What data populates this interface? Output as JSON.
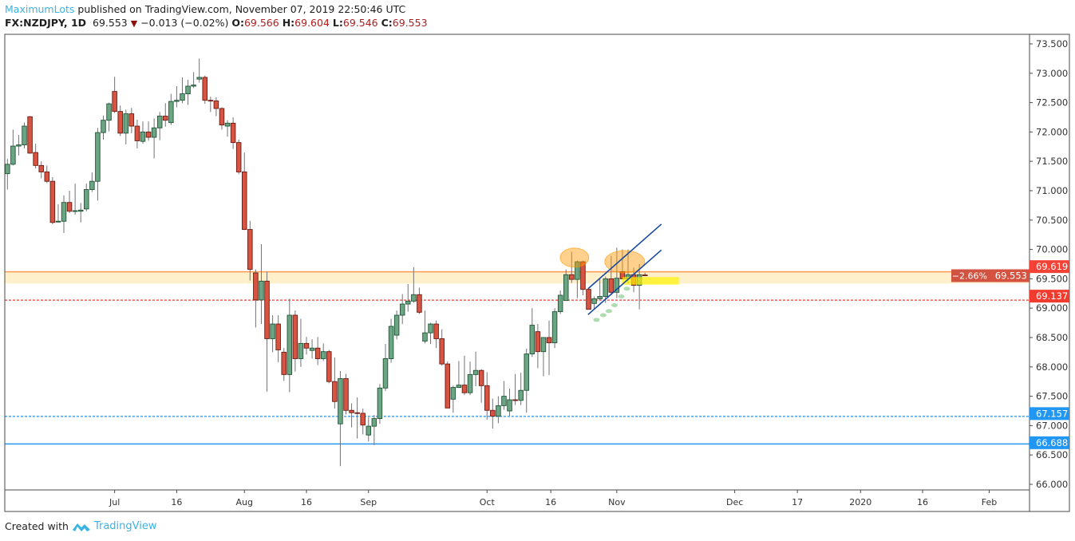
{
  "header": {
    "author": "MaximumLots",
    "published": "published on TradingView.com, November 07, 2019 22:50:46 UTC",
    "symbol": "FX:NZDJPY, 1D",
    "last": "69.553",
    "change": "−0.013 (−0.02%)",
    "o_label": "O:",
    "o": "69.566",
    "h_label": "H:",
    "h": "69.604",
    "l_label": "L:",
    "l": "69.546",
    "c_label": "C:",
    "c": "69.553"
  },
  "footer": {
    "created_with": "Created with",
    "brand": "TradingView"
  },
  "colors": {
    "up": "#6ba583",
    "up_border": "#225437",
    "down": "#d75442",
    "down_border": "#6b1a12",
    "wick": "#737375",
    "orange": "#ff9850",
    "red_line": "#f23b2f",
    "blue": "#2196f3"
  },
  "chart_data": {
    "type": "candlestick",
    "title": "FX:NZDJPY, 1D",
    "ylim": [
      66.0,
      73.5
    ],
    "y_ticks": [
      "73.500",
      "73.000",
      "72.500",
      "72.000",
      "71.500",
      "71.000",
      "70.500",
      "70.000",
      "69.500",
      "69.000",
      "68.500",
      "68.000",
      "67.500",
      "67.000",
      "66.500",
      "66.000"
    ],
    "y_tick_values": [
      73.5,
      73.0,
      72.5,
      72.0,
      71.5,
      71.0,
      70.5,
      70.0,
      69.5,
      69.0,
      68.5,
      68.0,
      67.5,
      67.0,
      66.5,
      66.0
    ],
    "x_ticks": [
      {
        "label": "Jul",
        "bar": 19
      },
      {
        "label": "16",
        "bar": 30
      },
      {
        "label": "Aug",
        "bar": 42
      },
      {
        "label": "16",
        "bar": 53
      },
      {
        "label": "Sep",
        "bar": 64
      },
      {
        "label": "Oct",
        "bar": 85
      },
      {
        "label": "16",
        "bar": 96.3
      },
      {
        "label": "Nov",
        "bar": 108
      },
      {
        "label": "Dec",
        "bar": 128.9
      },
      {
        "label": "17",
        "bar": 140
      },
      {
        "label": "2020",
        "bar": 151.2
      },
      {
        "label": "16",
        "bar": 162.2
      },
      {
        "label": "Feb",
        "bar": 174
      }
    ],
    "ohlc": [
      [
        71.29,
        71.54,
        71.02,
        71.45
      ],
      [
        71.45,
        72.04,
        71.43,
        71.76
      ],
      [
        71.76,
        71.95,
        71.6,
        71.78
      ],
      [
        71.78,
        72.16,
        71.72,
        72.1
      ],
      [
        72.26,
        72.27,
        71.63,
        71.64
      ],
      [
        71.65,
        71.8,
        71.38,
        71.43
      ],
      [
        71.43,
        71.5,
        71.21,
        71.32
      ],
      [
        71.32,
        71.43,
        71.13,
        71.16
      ],
      [
        71.16,
        71.23,
        70.43,
        70.46
      ],
      [
        70.47,
        70.77,
        70.46,
        70.48
      ],
      [
        70.48,
        70.92,
        70.28,
        70.8
      ],
      [
        70.8,
        71.0,
        70.62,
        70.65
      ],
      [
        70.65,
        71.12,
        70.59,
        70.66
      ],
      [
        70.65,
        70.79,
        70.46,
        70.67
      ],
      [
        70.69,
        71.12,
        70.65,
        71.02
      ],
      [
        71.02,
        71.31,
        70.98,
        71.16
      ],
      [
        71.16,
        72.07,
        70.83,
        71.99
      ],
      [
        71.99,
        72.28,
        71.87,
        72.2
      ],
      [
        72.2,
        72.5,
        72.01,
        72.48
      ],
      [
        72.69,
        72.94,
        72.32,
        72.35
      ],
      [
        72.35,
        72.45,
        71.93,
        71.98
      ],
      [
        71.98,
        72.38,
        71.79,
        72.31
      ],
      [
        72.31,
        72.41,
        71.98,
        72.1
      ],
      [
        72.1,
        72.21,
        71.72,
        71.85
      ],
      [
        71.84,
        72.18,
        71.8,
        72.0
      ],
      [
        72.0,
        72.18,
        71.85,
        71.91
      ],
      [
        71.91,
        72.23,
        71.55,
        72.07
      ],
      [
        72.07,
        72.34,
        71.86,
        72.27
      ],
      [
        72.27,
        72.49,
        72.09,
        72.2
      ],
      [
        72.16,
        72.65,
        72.12,
        72.52
      ],
      [
        72.52,
        72.78,
        72.42,
        72.54
      ],
      [
        72.54,
        72.93,
        72.49,
        72.65
      ],
      [
        72.65,
        72.89,
        72.46,
        72.78
      ],
      [
        72.78,
        73.02,
        72.75,
        72.8
      ],
      [
        72.9,
        73.25,
        72.84,
        72.93
      ],
      [
        72.93,
        72.96,
        72.48,
        72.54
      ],
      [
        72.54,
        72.6,
        72.34,
        72.53
      ],
      [
        72.53,
        72.59,
        72.27,
        72.4
      ],
      [
        72.4,
        72.42,
        72.04,
        72.12
      ],
      [
        72.1,
        72.2,
        71.92,
        72.15
      ],
      [
        72.15,
        72.25,
        71.71,
        71.82
      ],
      [
        71.82,
        71.87,
        71.28,
        71.32
      ],
      [
        71.32,
        71.65,
        70.33,
        70.34
      ],
      [
        70.34,
        70.49,
        69.47,
        69.66
      ],
      [
        69.6,
        69.66,
        68.67,
        69.14
      ],
      [
        69.14,
        70.09,
        68.73,
        69.46
      ],
      [
        69.46,
        69.62,
        67.58,
        68.48
      ],
      [
        68.48,
        68.88,
        68.25,
        68.73
      ],
      [
        68.73,
        68.88,
        68.08,
        68.29
      ],
      [
        68.25,
        68.32,
        67.76,
        67.87
      ],
      [
        67.87,
        69.16,
        67.57,
        68.88
      ],
      [
        68.88,
        68.96,
        67.92,
        68.14
      ],
      [
        68.14,
        68.82,
        68.0,
        68.4
      ],
      [
        68.4,
        68.51,
        68.21,
        68.32
      ],
      [
        68.28,
        68.47,
        68.14,
        68.32
      ],
      [
        68.32,
        68.51,
        68.03,
        68.14
      ],
      [
        68.14,
        68.4,
        68.1,
        68.26
      ],
      [
        68.26,
        68.29,
        67.72,
        67.75
      ],
      [
        67.75,
        68.16,
        67.29,
        67.41
      ],
      [
        67.03,
        67.93,
        66.31,
        67.8
      ],
      [
        67.8,
        67.88,
        67.19,
        67.26
      ],
      [
        67.26,
        67.38,
        66.97,
        67.22
      ],
      [
        67.22,
        67.48,
        66.78,
        67.21
      ],
      [
        67.21,
        67.29,
        66.85,
        67.01
      ],
      [
        66.84,
        67.14,
        66.73,
        66.99
      ],
      [
        66.99,
        67.18,
        66.67,
        67.12
      ],
      [
        67.12,
        67.71,
        67.03,
        67.64
      ],
      [
        67.64,
        68.39,
        67.59,
        68.14
      ],
      [
        68.14,
        68.82,
        68.07,
        68.69
      ],
      [
        68.54,
        68.96,
        68.47,
        68.88
      ],
      [
        68.88,
        69.24,
        68.73,
        69.07
      ],
      [
        69.07,
        69.41,
        68.94,
        69.12
      ],
      [
        69.12,
        69.7,
        69.09,
        69.23
      ],
      [
        69.23,
        69.35,
        68.9,
        68.93
      ],
      [
        68.44,
        68.96,
        68.4,
        68.58
      ],
      [
        68.58,
        68.75,
        68.39,
        68.73
      ],
      [
        68.73,
        68.79,
        68.32,
        68.48
      ],
      [
        68.48,
        68.64,
        68.02,
        68.05
      ],
      [
        68.05,
        68.09,
        67.3,
        67.3
      ],
      [
        67.45,
        67.68,
        67.22,
        67.65
      ],
      [
        67.65,
        68.1,
        67.64,
        67.69
      ],
      [
        67.69,
        68.19,
        67.52,
        67.56
      ],
      [
        67.56,
        68.09,
        67.52,
        67.87
      ],
      [
        67.87,
        68.26,
        67.67,
        67.94
      ],
      [
        67.94,
        67.96,
        67.39,
        67.68
      ],
      [
        67.68,
        67.91,
        67.1,
        67.26
      ],
      [
        67.26,
        67.46,
        66.95,
        67.16
      ],
      [
        67.16,
        67.5,
        67.04,
        67.34
      ],
      [
        67.34,
        67.76,
        67.27,
        67.5
      ],
      [
        67.25,
        67.63,
        67.16,
        67.44
      ],
      [
        67.44,
        67.88,
        67.35,
        67.43
      ],
      [
        67.43,
        67.9,
        67.35,
        67.6
      ],
      [
        67.6,
        68.31,
        67.22,
        68.22
      ],
      [
        68.22,
        69.0,
        68.17,
        68.71
      ],
      [
        68.6,
        68.73,
        67.98,
        68.26
      ],
      [
        68.26,
        68.5,
        67.84,
        68.5
      ],
      [
        68.5,
        68.79,
        67.86,
        68.41
      ],
      [
        68.41,
        69.0,
        68.32,
        68.94
      ],
      [
        68.94,
        69.3,
        68.9,
        69.22
      ],
      [
        69.13,
        69.66,
        69.13,
        69.57
      ],
      [
        69.57,
        69.96,
        69.43,
        69.49
      ],
      [
        69.49,
        69.81,
        69.17,
        69.79
      ],
      [
        69.79,
        69.81,
        69.22,
        69.32
      ],
      [
        69.32,
        69.35,
        68.98,
        68.98
      ],
      [
        69.08,
        69.2,
        68.98,
        69.16
      ],
      [
        69.16,
        69.49,
        69.13,
        69.2
      ],
      [
        69.2,
        69.54,
        69.09,
        69.5
      ],
      [
        69.5,
        69.89,
        69.22,
        69.27
      ],
      [
        69.27,
        70.03,
        69.17,
        69.51
      ],
      [
        69.62,
        70.0,
        69.5,
        69.5
      ],
      [
        69.5,
        70.0,
        69.42,
        69.57
      ],
      [
        69.57,
        69.69,
        69.27,
        69.39
      ],
      [
        69.39,
        69.75,
        68.98,
        69.57
      ],
      [
        69.566,
        69.604,
        69.546,
        69.553
      ]
    ],
    "annotations": {
      "resistance_zone": {
        "top": 69.619,
        "bottom": 69.42
      },
      "levels": [
        {
          "name": "orange-resistance-line",
          "price": 69.619,
          "label": "69.619",
          "style": "solid",
          "color": "#ff9850",
          "label_bg": "#f44336"
        },
        {
          "name": "red-support-line",
          "price": 69.137,
          "label": "69.137",
          "style": "dotted",
          "color": "#f23b2f",
          "label_bg": "#f23b2f"
        },
        {
          "name": "blue-support-line-dotted",
          "price": 67.157,
          "label": "67.157",
          "style": "dotted",
          "color": "#2196f3",
          "label_bg": "#2196f3"
        },
        {
          "name": "blue-support-line-solid",
          "price": 66.688,
          "label": "66.688",
          "style": "solid",
          "color": "#2196f3",
          "label_bg": "#2196f3"
        }
      ],
      "last_price": {
        "label": "69.553",
        "change_pct": "−2.66%"
      },
      "channel": [
        {
          "from": [
            102.9,
            69.33
          ],
          "to": [
            115.9,
            70.43
          ]
        },
        {
          "from": [
            102.9,
            68.89
          ],
          "to": [
            115.9,
            69.99
          ]
        }
      ],
      "highlight_box": {
        "bar_from": 109,
        "bar_to": 119,
        "price_top": 69.53,
        "price_bottom": 69.4
      },
      "orange_ellipses": [
        {
          "bar": 100.5,
          "price": 69.86
        },
        {
          "bar": 109.4,
          "price": 69.79
        }
      ],
      "green_dots": [
        {
          "bar": 104.4,
          "price": 68.8
        },
        {
          "bar": 105.6,
          "price": 68.88
        },
        {
          "bar": 106.6,
          "price": 68.95
        },
        {
          "bar": 107.6,
          "price": 69.05
        },
        {
          "bar": 108.8,
          "price": 69.2
        },
        {
          "bar": 109.8,
          "price": 69.33
        }
      ]
    }
  }
}
